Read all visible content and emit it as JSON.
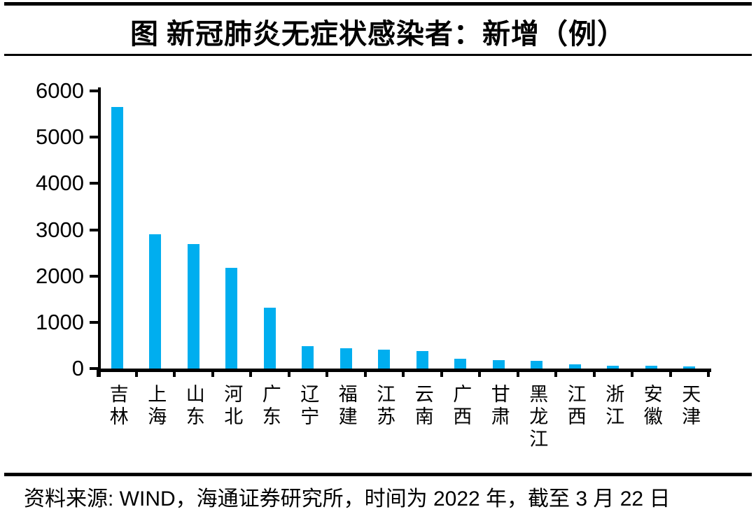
{
  "header": {
    "title": "图  新冠肺炎无症状感染者：新增（例）"
  },
  "footer": {
    "source": "资料来源: WIND，海通证券研究所，时间为 2022 年，截至 3 月 22 日"
  },
  "colors": {
    "bar": "#00AEEF",
    "axis": "#000000",
    "rule": "#000000",
    "background": "#FFFFFF"
  },
  "chart_data": {
    "type": "bar",
    "title": "图 新冠肺炎无症状感染者：新增（例）",
    "categories": [
      "吉林",
      "上海",
      "山东",
      "河北",
      "广东",
      "辽宁",
      "福建",
      "江苏",
      "云南",
      "广西",
      "甘肃",
      "黑龙江",
      "江西",
      "浙江",
      "安徽",
      "天津"
    ],
    "values": [
      5650,
      2900,
      2690,
      2180,
      1310,
      480,
      440,
      410,
      380,
      210,
      185,
      170,
      95,
      65,
      60,
      45
    ],
    "xlabel": "",
    "ylabel": "",
    "ylim": [
      0,
      6000
    ],
    "yticks": [
      0,
      1000,
      2000,
      3000,
      4000,
      5000,
      6000
    ],
    "grid": false,
    "legend": false,
    "bar_color": "#00AEEF",
    "source": "资料来源: WIND，海通证券研究所，时间为 2022 年，截至 3 月 22 日"
  }
}
